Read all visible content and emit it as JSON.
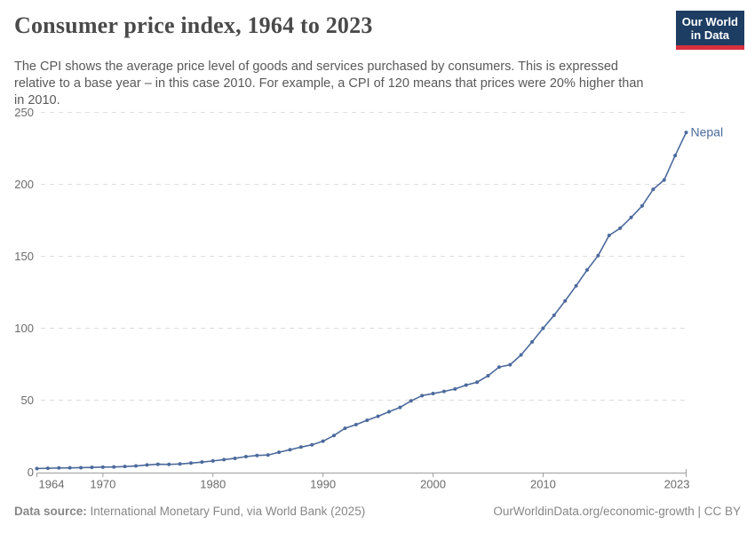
{
  "header": {
    "title": "Consumer price index, 1964 to 2023",
    "subtitle_lines": [
      "The CPI shows the average price level of goods and services purchased by consumers. This is expressed",
      "relative to a base year – in this case 2010. For example, a CPI of 120 means that prices were 20% higher than",
      "in 2010."
    ],
    "logo": {
      "line1": "Our World",
      "line2": "in Data"
    }
  },
  "chart_data": {
    "type": "line",
    "title": "Consumer price index, 1964 to 2023",
    "xlabel": "",
    "ylabel": "",
    "xlim": [
      1964,
      2023
    ],
    "ylim": [
      0,
      250
    ],
    "x_ticks": [
      1964,
      1970,
      1980,
      1990,
      2000,
      2010,
      2023
    ],
    "y_ticks": [
      0,
      50,
      100,
      150,
      200,
      250
    ],
    "grid": "horizontal-dashed",
    "legend_position": "end-of-line-label",
    "series": [
      {
        "name": "Nepal",
        "color": "#4c6a9c",
        "x": [
          1964,
          1965,
          1966,
          1967,
          1968,
          1969,
          1970,
          1971,
          1972,
          1973,
          1974,
          1975,
          1976,
          1977,
          1978,
          1979,
          1980,
          1981,
          1982,
          1983,
          1984,
          1985,
          1986,
          1987,
          1988,
          1989,
          1990,
          1991,
          1992,
          1993,
          1994,
          1995,
          1996,
          1997,
          1998,
          1999,
          2000,
          2001,
          2002,
          2003,
          2004,
          2005,
          2006,
          2007,
          2008,
          2009,
          2010,
          2011,
          2012,
          2013,
          2014,
          2015,
          2016,
          2017,
          2018,
          2019,
          2020,
          2021,
          2022,
          2023
        ],
        "values": [
          2.5,
          2.7,
          2.9,
          3.0,
          3.1,
          3.3,
          3.5,
          3.6,
          3.9,
          4.3,
          5.0,
          5.5,
          5.4,
          5.7,
          6.3,
          7.0,
          7.8,
          8.7,
          9.6,
          10.8,
          11.6,
          11.9,
          13.8,
          15.6,
          17.4,
          19.0,
          21.5,
          25.5,
          30.5,
          33.0,
          36.0,
          38.8,
          42.0,
          45.0,
          49.5,
          53.2,
          54.6,
          56.1,
          57.8,
          60.5,
          62.5,
          67.0,
          73.0,
          74.6,
          81.5,
          90.5,
          100.0,
          109.0,
          119.0,
          129.5,
          140.5,
          150.5,
          164.5,
          169.5,
          177.0,
          185.0,
          196.5,
          203.0,
          220.0,
          236.0
        ]
      }
    ]
  },
  "footer": {
    "source_label": "Data source:",
    "source_text": " International Monetary Fund, via World Bank (2025)",
    "rights": "OurWorldinData.org/economic-growth | CC BY"
  },
  "colors": {
    "line": "#4c6a9c",
    "grid": "#dedede",
    "axis": "#9e9e9e",
    "logo_bg": "#1d3d63",
    "logo_red": "#d9303e"
  }
}
